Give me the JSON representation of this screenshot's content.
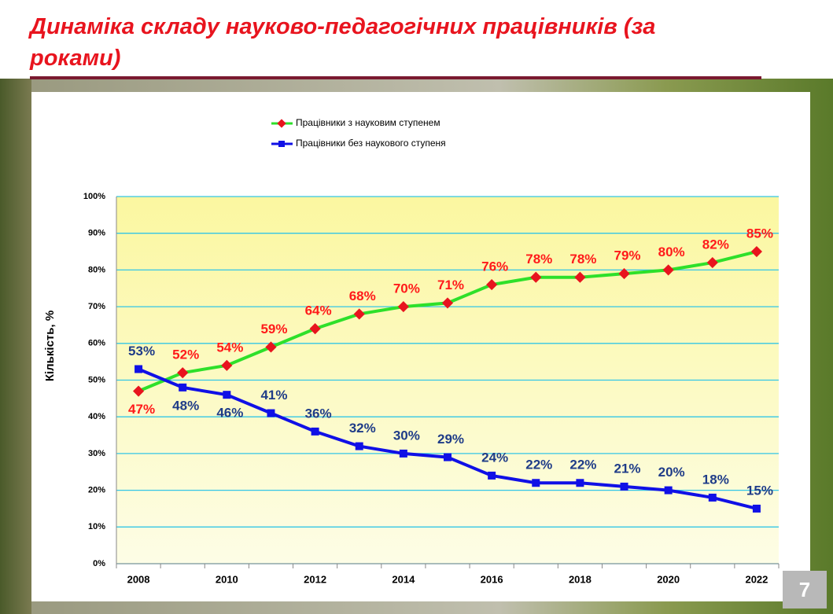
{
  "title": "Динаміка складу науково-педагогічних працівників (за роками)",
  "slide_number": "7",
  "chart_data": {
    "type": "line",
    "y_label": "Кількість, %",
    "categories": [
      "2008",
      null,
      "2010",
      null,
      "2012",
      null,
      "2014",
      null,
      "2016",
      null,
      "2018",
      null,
      "2020",
      null,
      "2022"
    ],
    "series": [
      {
        "name": "Працівники з науковим ступенем",
        "color": "#2ee02a",
        "label_color": "#ff1a1a",
        "values": [
          47,
          52,
          54,
          59,
          64,
          68,
          70,
          71,
          76,
          78,
          78,
          79,
          80,
          82,
          85
        ],
        "value_labels": [
          "47%",
          "52%",
          "54%",
          "59%",
          "64%",
          "68%",
          "70%",
          "71%",
          "76%",
          "78%",
          "78%",
          "79%",
          "80%",
          "82%",
          "85%"
        ]
      },
      {
        "name": "Працівники без наукового ступеня",
        "color": "#1010e6",
        "label_color": "#1f3c88",
        "values": [
          53,
          48,
          46,
          41,
          36,
          32,
          30,
          29,
          24,
          22,
          22,
          21,
          20,
          18,
          15
        ],
        "value_labels": [
          "53%",
          "48%",
          "46%",
          "41%",
          "36%",
          "32%",
          "30%",
          "29%",
          "24%",
          "22%",
          "22%",
          "21%",
          "20%",
          "18%",
          "15%"
        ]
      }
    ],
    "ylim": [
      0,
      100
    ],
    "yticks": [
      {
        "value": 0,
        "label": "0%"
      },
      {
        "value": 10,
        "label": "10%"
      },
      {
        "value": 20,
        "label": "20%"
      },
      {
        "value": 30,
        "label": "30%"
      },
      {
        "value": 40,
        "label": "40%"
      },
      {
        "value": 50,
        "label": "50%"
      },
      {
        "value": 60,
        "label": "60%"
      },
      {
        "value": 70,
        "label": "70%"
      },
      {
        "value": 80,
        "label": "80%"
      },
      {
        "value": 90,
        "label": "90%"
      },
      {
        "value": 100,
        "label": "100%"
      }
    ],
    "grid": true
  }
}
